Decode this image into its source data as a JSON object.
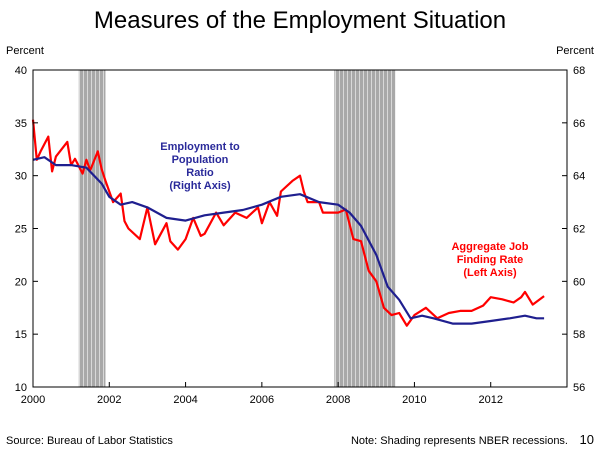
{
  "chart_data": {
    "type": "line",
    "title": "Measures of the Employment Situation",
    "y_left_label": "Percent",
    "y_right_label": "Percent",
    "ylim_left": [
      10,
      40
    ],
    "ylim_right": [
      56,
      68
    ],
    "xlim": [
      2000,
      2014
    ],
    "x_ticks": [
      "2000",
      "2002",
      "2004",
      "2006",
      "2008",
      "2010",
      "2012"
    ],
    "y_left_ticks": [
      "10",
      "15",
      "20",
      "25",
      "30",
      "35",
      "40"
    ],
    "y_right_ticks": [
      "56",
      "58",
      "60",
      "62",
      "64",
      "66",
      "68"
    ],
    "recessions": [
      [
        2001.2,
        2001.9
      ],
      [
        2007.9,
        2009.5
      ]
    ],
    "series": [
      {
        "name": "Aggregate Job Finding Rate (Left Axis)",
        "label_lines": [
          "Aggregate Job",
          "Finding Rate",
          "(Left Axis)"
        ],
        "axis": "left",
        "color": "#ff0000",
        "x": [
          2000.0,
          2000.1,
          2000.2,
          2000.4,
          2000.5,
          2000.6,
          2000.9,
          2001.0,
          2001.1,
          2001.3,
          2001.4,
          2001.5,
          2001.7,
          2001.8,
          2001.9,
          2002.1,
          2002.3,
          2002.4,
          2002.5,
          2002.8,
          2003.0,
          2003.2,
          2003.5,
          2003.6,
          2003.8,
          2004.0,
          2004.2,
          2004.4,
          2004.5,
          2004.8,
          2005.0,
          2005.3,
          2005.6,
          2005.9,
          2006.0,
          2006.2,
          2006.4,
          2006.5,
          2006.8,
          2007.0,
          2007.1,
          2007.2,
          2007.5,
          2007.6,
          2007.8,
          2008.0,
          2008.2,
          2008.4,
          2008.6,
          2008.8,
          2009.0,
          2009.2,
          2009.4,
          2009.6,
          2009.8,
          2010.0,
          2010.3,
          2010.6,
          2010.9,
          2011.2,
          2011.5,
          2011.8,
          2012.0,
          2012.3,
          2012.6,
          2012.8,
          2012.9,
          2013.1,
          2013.4
        ],
        "values": [
          35.3,
          31.5,
          32.3,
          33.7,
          30.4,
          31.8,
          33.2,
          31.0,
          31.6,
          30.2,
          31.5,
          30.5,
          32.3,
          30.6,
          29.5,
          27.5,
          28.3,
          25.7,
          25.0,
          24.0,
          27.0,
          23.5,
          25.5,
          23.8,
          23.0,
          24.0,
          26.0,
          24.3,
          24.5,
          26.5,
          25.3,
          26.5,
          26.0,
          27.0,
          25.5,
          27.5,
          26.2,
          28.5,
          29.5,
          30.0,
          28.5,
          27.5,
          27.5,
          26.5,
          26.5,
          26.5,
          26.8,
          24.0,
          23.8,
          21.0,
          20.0,
          17.5,
          16.8,
          17.0,
          15.8,
          16.8,
          17.5,
          16.5,
          17.0,
          17.2,
          17.2,
          17.7,
          18.5,
          18.3,
          18.0,
          18.5,
          19.0,
          17.8,
          18.6
        ]
      },
      {
        "name": "Employment to Population Ratio (Right Axis)",
        "label_lines": [
          "Employment  to",
          "Population",
          "Ratio",
          "(Right Axis)"
        ],
        "axis": "right",
        "color": "#1f1f8f",
        "x": [
          2000.0,
          2000.3,
          2000.6,
          2001.0,
          2001.4,
          2001.8,
          2002.0,
          2002.3,
          2002.6,
          2003.0,
          2003.5,
          2004.0,
          2004.5,
          2005.0,
          2005.5,
          2006.0,
          2006.5,
          2007.0,
          2007.5,
          2008.0,
          2008.3,
          2008.6,
          2009.0,
          2009.3,
          2009.6,
          2009.9,
          2010.2,
          2010.5,
          2011.0,
          2011.5,
          2012.0,
          2012.5,
          2012.9,
          2013.2,
          2013.4
        ],
        "values": [
          64.6,
          64.7,
          64.4,
          64.4,
          64.3,
          63.7,
          63.2,
          62.9,
          63.0,
          62.8,
          62.4,
          62.3,
          62.5,
          62.6,
          62.7,
          62.9,
          63.2,
          63.3,
          63.0,
          62.9,
          62.6,
          62.1,
          61.0,
          59.8,
          59.3,
          58.6,
          58.7,
          58.6,
          58.4,
          58.4,
          58.5,
          58.6,
          58.7,
          58.6,
          58.6
        ]
      }
    ]
  },
  "footer": {
    "source": "Source: Bureau of Labor Statistics",
    "note": "Note: Shading represents NBER recessions.",
    "page_number": "10"
  }
}
